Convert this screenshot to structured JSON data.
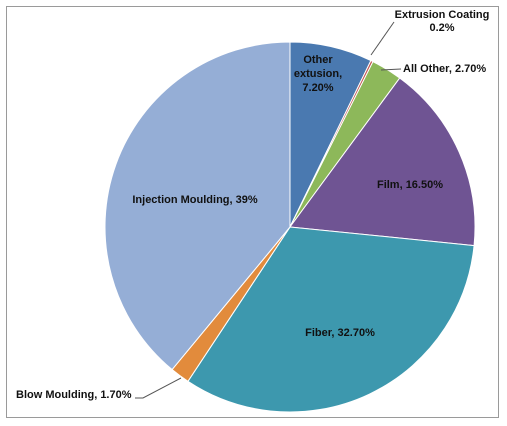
{
  "chart_data": {
    "type": "pie",
    "start_angle_deg": 0,
    "direction": "clockwise",
    "slices": [
      {
        "label": "Other extusion, 7.20%",
        "label_lines": [
          "Other",
          "extusion,",
          "7.20%"
        ],
        "value": 7.2,
        "color": "#4a79b0"
      },
      {
        "label": "Extrusion Coating 0.2%",
        "label_lines": [
          "Extrusion Coating",
          "0.2%"
        ],
        "value": 0.2,
        "color": "#c0504d"
      },
      {
        "label": "All Other, 2.70%",
        "label_lines": [
          "All Other, 2.70%"
        ],
        "value": 2.7,
        "color": "#8db85a"
      },
      {
        "label": "Film, 16.50%",
        "label_lines": [
          "Film, 16.50%"
        ],
        "value": 16.5,
        "color": "#6f5493"
      },
      {
        "label": "Fiber, 32.70%",
        "label_lines": [
          "Fiber, 32.70%"
        ],
        "value": 32.7,
        "color": "#3d98ae"
      },
      {
        "label": "Blow Moulding, 1.70%",
        "label_lines": [
          "Blow Moulding, 1.70%"
        ],
        "value": 1.7,
        "color": "#e28b3c"
      },
      {
        "label": "Injection Moulding, 39%",
        "label_lines": [
          "Injection Moulding, 39%"
        ],
        "value": 39,
        "color": "#95aed6"
      }
    ]
  }
}
